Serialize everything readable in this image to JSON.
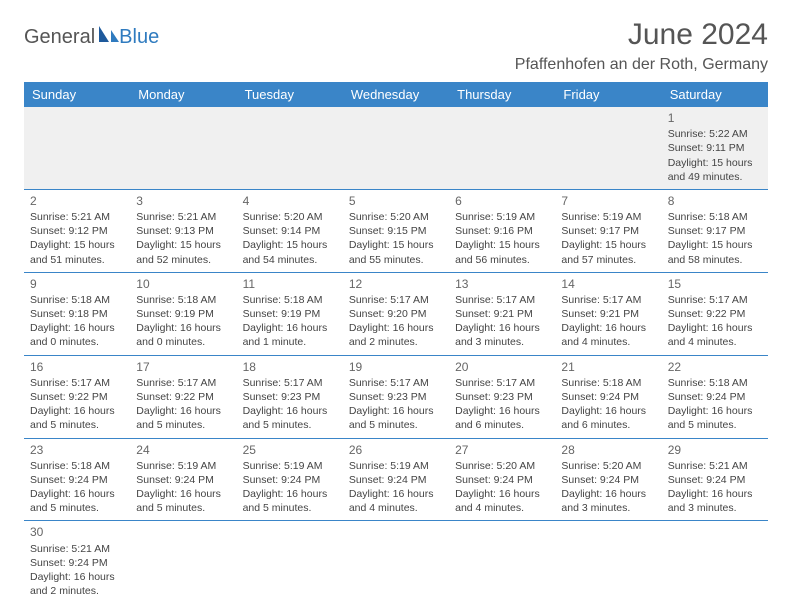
{
  "logo": {
    "text1": "General",
    "text2": "Blue"
  },
  "title": "June 2024",
  "location": "Pfaffenhofen an der Roth, Germany",
  "day_headers": [
    "Sunday",
    "Monday",
    "Tuesday",
    "Wednesday",
    "Thursday",
    "Friday",
    "Saturday"
  ],
  "colors": {
    "header_bg": "#3a85c8",
    "header_fg": "#ffffff",
    "logo_blue": "#2f7bbf",
    "rule": "#3a85c8",
    "week1_bg": "#f0f0f0"
  },
  "weeks": [
    [
      null,
      null,
      null,
      null,
      null,
      null,
      {
        "n": "1",
        "sr": "Sunrise: 5:22 AM",
        "ss": "Sunset: 9:11 PM",
        "dl1": "Daylight: 15 hours",
        "dl2": "and 49 minutes."
      }
    ],
    [
      {
        "n": "2",
        "sr": "Sunrise: 5:21 AM",
        "ss": "Sunset: 9:12 PM",
        "dl1": "Daylight: 15 hours",
        "dl2": "and 51 minutes."
      },
      {
        "n": "3",
        "sr": "Sunrise: 5:21 AM",
        "ss": "Sunset: 9:13 PM",
        "dl1": "Daylight: 15 hours",
        "dl2": "and 52 minutes."
      },
      {
        "n": "4",
        "sr": "Sunrise: 5:20 AM",
        "ss": "Sunset: 9:14 PM",
        "dl1": "Daylight: 15 hours",
        "dl2": "and 54 minutes."
      },
      {
        "n": "5",
        "sr": "Sunrise: 5:20 AM",
        "ss": "Sunset: 9:15 PM",
        "dl1": "Daylight: 15 hours",
        "dl2": "and 55 minutes."
      },
      {
        "n": "6",
        "sr": "Sunrise: 5:19 AM",
        "ss": "Sunset: 9:16 PM",
        "dl1": "Daylight: 15 hours",
        "dl2": "and 56 minutes."
      },
      {
        "n": "7",
        "sr": "Sunrise: 5:19 AM",
        "ss": "Sunset: 9:17 PM",
        "dl1": "Daylight: 15 hours",
        "dl2": "and 57 minutes."
      },
      {
        "n": "8",
        "sr": "Sunrise: 5:18 AM",
        "ss": "Sunset: 9:17 PM",
        "dl1": "Daylight: 15 hours",
        "dl2": "and 58 minutes."
      }
    ],
    [
      {
        "n": "9",
        "sr": "Sunrise: 5:18 AM",
        "ss": "Sunset: 9:18 PM",
        "dl1": "Daylight: 16 hours",
        "dl2": "and 0 minutes."
      },
      {
        "n": "10",
        "sr": "Sunrise: 5:18 AM",
        "ss": "Sunset: 9:19 PM",
        "dl1": "Daylight: 16 hours",
        "dl2": "and 0 minutes."
      },
      {
        "n": "11",
        "sr": "Sunrise: 5:18 AM",
        "ss": "Sunset: 9:19 PM",
        "dl1": "Daylight: 16 hours",
        "dl2": "and 1 minute."
      },
      {
        "n": "12",
        "sr": "Sunrise: 5:17 AM",
        "ss": "Sunset: 9:20 PM",
        "dl1": "Daylight: 16 hours",
        "dl2": "and 2 minutes."
      },
      {
        "n": "13",
        "sr": "Sunrise: 5:17 AM",
        "ss": "Sunset: 9:21 PM",
        "dl1": "Daylight: 16 hours",
        "dl2": "and 3 minutes."
      },
      {
        "n": "14",
        "sr": "Sunrise: 5:17 AM",
        "ss": "Sunset: 9:21 PM",
        "dl1": "Daylight: 16 hours",
        "dl2": "and 4 minutes."
      },
      {
        "n": "15",
        "sr": "Sunrise: 5:17 AM",
        "ss": "Sunset: 9:22 PM",
        "dl1": "Daylight: 16 hours",
        "dl2": "and 4 minutes."
      }
    ],
    [
      {
        "n": "16",
        "sr": "Sunrise: 5:17 AM",
        "ss": "Sunset: 9:22 PM",
        "dl1": "Daylight: 16 hours",
        "dl2": "and 5 minutes."
      },
      {
        "n": "17",
        "sr": "Sunrise: 5:17 AM",
        "ss": "Sunset: 9:22 PM",
        "dl1": "Daylight: 16 hours",
        "dl2": "and 5 minutes."
      },
      {
        "n": "18",
        "sr": "Sunrise: 5:17 AM",
        "ss": "Sunset: 9:23 PM",
        "dl1": "Daylight: 16 hours",
        "dl2": "and 5 minutes."
      },
      {
        "n": "19",
        "sr": "Sunrise: 5:17 AM",
        "ss": "Sunset: 9:23 PM",
        "dl1": "Daylight: 16 hours",
        "dl2": "and 5 minutes."
      },
      {
        "n": "20",
        "sr": "Sunrise: 5:17 AM",
        "ss": "Sunset: 9:23 PM",
        "dl1": "Daylight: 16 hours",
        "dl2": "and 6 minutes."
      },
      {
        "n": "21",
        "sr": "Sunrise: 5:18 AM",
        "ss": "Sunset: 9:24 PM",
        "dl1": "Daylight: 16 hours",
        "dl2": "and 6 minutes."
      },
      {
        "n": "22",
        "sr": "Sunrise: 5:18 AM",
        "ss": "Sunset: 9:24 PM",
        "dl1": "Daylight: 16 hours",
        "dl2": "and 5 minutes."
      }
    ],
    [
      {
        "n": "23",
        "sr": "Sunrise: 5:18 AM",
        "ss": "Sunset: 9:24 PM",
        "dl1": "Daylight: 16 hours",
        "dl2": "and 5 minutes."
      },
      {
        "n": "24",
        "sr": "Sunrise: 5:19 AM",
        "ss": "Sunset: 9:24 PM",
        "dl1": "Daylight: 16 hours",
        "dl2": "and 5 minutes."
      },
      {
        "n": "25",
        "sr": "Sunrise: 5:19 AM",
        "ss": "Sunset: 9:24 PM",
        "dl1": "Daylight: 16 hours",
        "dl2": "and 5 minutes."
      },
      {
        "n": "26",
        "sr": "Sunrise: 5:19 AM",
        "ss": "Sunset: 9:24 PM",
        "dl1": "Daylight: 16 hours",
        "dl2": "and 4 minutes."
      },
      {
        "n": "27",
        "sr": "Sunrise: 5:20 AM",
        "ss": "Sunset: 9:24 PM",
        "dl1": "Daylight: 16 hours",
        "dl2": "and 4 minutes."
      },
      {
        "n": "28",
        "sr": "Sunrise: 5:20 AM",
        "ss": "Sunset: 9:24 PM",
        "dl1": "Daylight: 16 hours",
        "dl2": "and 3 minutes."
      },
      {
        "n": "29",
        "sr": "Sunrise: 5:21 AM",
        "ss": "Sunset: 9:24 PM",
        "dl1": "Daylight: 16 hours",
        "dl2": "and 3 minutes."
      }
    ],
    [
      {
        "n": "30",
        "sr": "Sunrise: 5:21 AM",
        "ss": "Sunset: 9:24 PM",
        "dl1": "Daylight: 16 hours",
        "dl2": "and 2 minutes."
      },
      null,
      null,
      null,
      null,
      null,
      null
    ]
  ]
}
